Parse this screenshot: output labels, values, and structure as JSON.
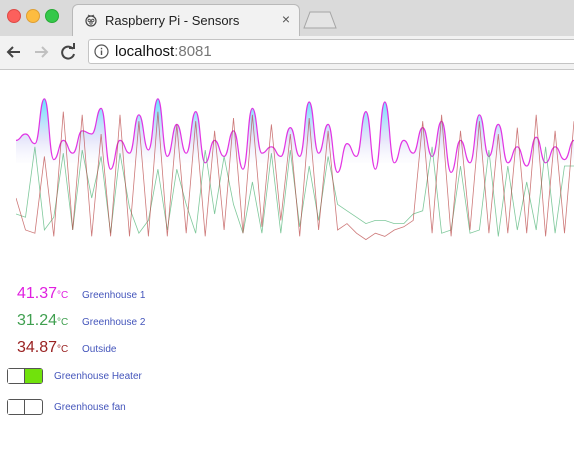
{
  "browser": {
    "tab_title": "Raspberry Pi - Sensors",
    "tab_close": "×",
    "url_host": "localhost",
    "url_port": ":8081"
  },
  "chart_data": {
    "type": "line",
    "grid": false,
    "ylim": [
      0,
      100
    ],
    "series": [
      {
        "color": "#e020e0",
        "values": [
          66,
          70,
          64,
          92,
          54,
          66,
          58,
          72,
          70,
          86,
          48,
          66,
          58,
          82,
          60,
          92,
          56,
          76,
          58,
          84,
          52,
          66,
          56,
          72,
          48,
          86,
          58,
          62,
          56,
          74,
          56,
          90,
          58,
          76,
          46,
          64,
          56,
          84,
          48,
          90,
          52,
          66,
          58,
          74,
          56,
          78,
          46,
          66,
          52,
          82,
          56,
          76,
          52,
          62,
          50,
          68,
          52,
          62,
          54,
          66
        ]
      },
      {
        "color": "#48b070",
        "values": [
          20,
          18,
          62,
          10,
          18,
          58,
          10,
          60,
          30,
          56,
          8,
          58,
          24,
          8,
          16,
          48,
          10,
          48,
          26,
          8,
          60,
          20,
          56,
          26,
          8,
          40,
          8,
          58,
          8,
          60,
          12,
          50,
          16,
          56,
          26,
          22,
          18,
          14,
          16,
          16,
          14,
          14,
          20,
          22,
          62,
          8,
          10,
          50,
          8,
          10,
          60,
          6,
          50,
          10,
          40,
          10,
          62,
          8,
          50,
          50
        ]
      },
      {
        "color": "#b84040",
        "values": [
          30,
          10,
          8,
          56,
          6,
          84,
          10,
          82,
          6,
          70,
          6,
          82,
          6,
          78,
          6,
          84,
          6,
          76,
          8,
          78,
          6,
          72,
          10,
          80,
          8,
          82,
          12,
          76,
          16,
          70,
          6,
          80,
          10,
          72,
          10,
          14,
          8,
          4,
          8,
          6,
          10,
          12,
          16,
          78,
          8,
          82,
          6,
          72,
          10,
          78,
          8,
          70,
          8,
          74,
          8,
          82,
          6,
          72,
          8,
          78
        ]
      }
    ]
  },
  "sensors": [
    {
      "value": "41.37",
      "unit": "°C",
      "label": "Greenhouse 1",
      "color": "#e020e0"
    },
    {
      "value": "31.24",
      "unit": "°C",
      "label": "Greenhouse 2",
      "color": "#3f9f4f"
    },
    {
      "value": "34.87",
      "unit": "°C",
      "label": "Outside",
      "color": "#9a2222"
    }
  ],
  "switches": [
    {
      "label": "Greenhouse Heater",
      "state": "on"
    },
    {
      "label": "Greenhouse fan",
      "state": "off"
    }
  ]
}
